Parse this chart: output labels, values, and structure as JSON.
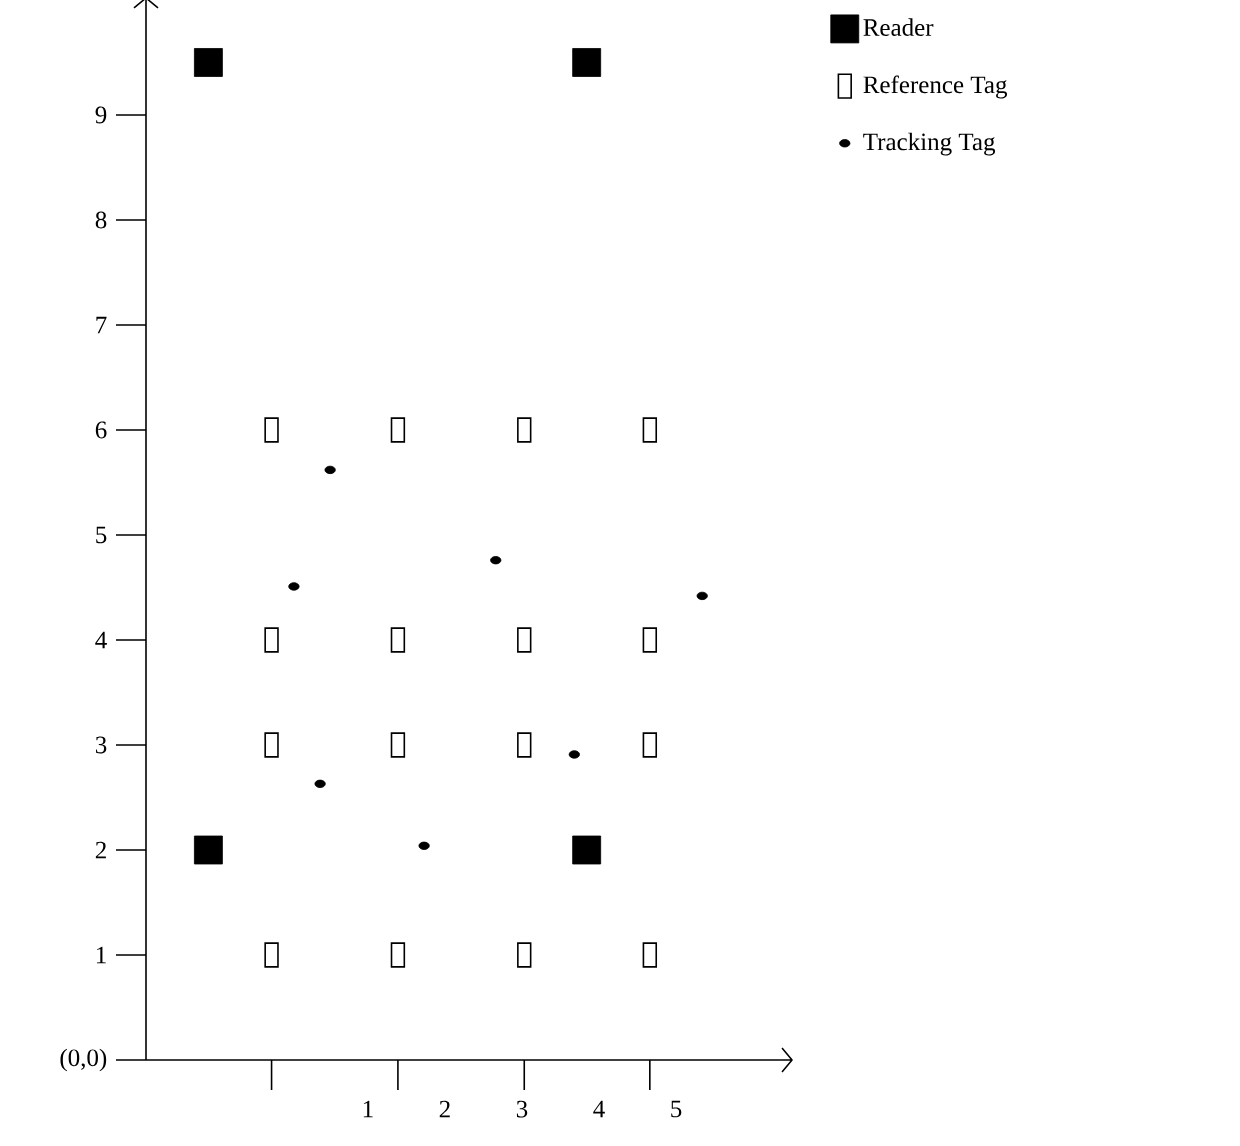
{
  "chart_data": {
    "type": "scatter",
    "xlim": [
      -1.88,
      6.35
    ],
    "ylim": [
      0,
      10
    ],
    "xticks": [
      {
        "value": -0.25,
        "label": null
      },
      1,
      {
        "value": 1.39,
        "label": null
      },
      2,
      3,
      {
        "value": 3.03,
        "label": null
      },
      4,
      {
        "value": 4.66,
        "label": null
      },
      5
    ],
    "yticks": [
      {
        "value": 0,
        "label": "(0,0)"
      },
      1,
      2,
      3,
      4,
      5,
      6,
      7,
      8,
      9
    ],
    "legend": "top right",
    "grid": false,
    "series": [
      {
        "name": "Reader",
        "color": "#000000",
        "marker": "square",
        "x": [
          -1.07,
          3.84,
          -1.07,
          3.84
        ],
        "values": [
          9.5,
          9.5,
          2,
          2
        ]
      },
      {
        "name": "Reference Tag",
        "color": "#000000",
        "marker": "square",
        "x": [
          -0.25,
          1.39,
          3.03,
          4.66,
          -0.25,
          1.39,
          3.03,
          4.66,
          -0.25,
          1.39,
          3.03,
          4.66,
          -0.25,
          1.39,
          3.03,
          4.66
        ],
        "values": [
          1,
          1,
          1,
          1,
          3,
          3,
          3,
          3,
          4,
          4,
          4,
          4,
          6,
          6,
          6,
          6
        ]
      },
      {
        "name": "Tracking Tag",
        "color": "#000000",
        "marker": "circle",
        "x": [
          0.51,
          0.04,
          2.66,
          5.34,
          0.38,
          3.68,
          1.73
        ],
        "values": [
          5.62,
          4.51,
          4.76,
          4.42,
          2.63,
          2.91,
          2.04
        ]
      }
    ]
  }
}
